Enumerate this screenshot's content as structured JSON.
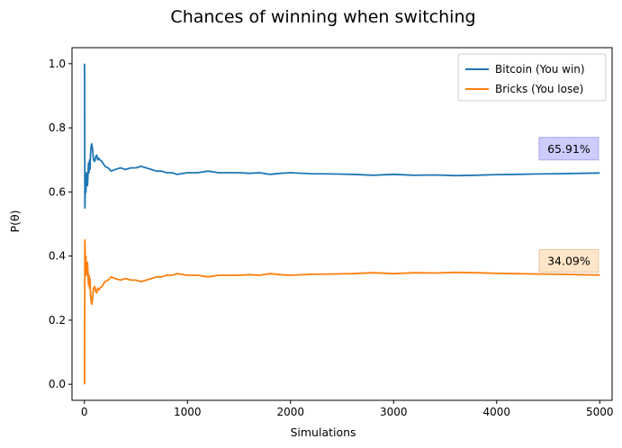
{
  "chart_data": {
    "type": "line",
    "title": "Chances of winning when switching",
    "xlabel": "Simulations",
    "ylabel": "P(θ)",
    "xlim": [
      -120,
      5120
    ],
    "ylim": [
      -0.05,
      1.05
    ],
    "xticks": [
      0,
      1000,
      2000,
      3000,
      4000,
      5000
    ],
    "xtick_labels": [
      "0",
      "1000",
      "2000",
      "3000",
      "4000",
      "5000"
    ],
    "yticks": [
      0.0,
      0.2,
      0.4,
      0.6,
      0.8,
      1.0
    ],
    "ytick_labels": [
      "0.0",
      "0.2",
      "0.4",
      "0.6",
      "0.8",
      "1.0"
    ],
    "grid": false,
    "legend_position": "top-right",
    "series": [
      {
        "name": "Bitcoin (You win)",
        "color": "#1f77b4",
        "x": [
          1,
          5,
          10,
          15,
          20,
          25,
          30,
          35,
          40,
          45,
          50,
          55,
          60,
          65,
          70,
          75,
          80,
          85,
          90,
          100,
          110,
          120,
          130,
          140,
          150,
          170,
          200,
          230,
          260,
          300,
          350,
          400,
          450,
          500,
          550,
          600,
          650,
          700,
          750,
          800,
          850,
          900,
          1000,
          1100,
          1200,
          1300,
          1400,
          1500,
          1600,
          1700,
          1800,
          1900,
          2000,
          2200,
          2400,
          2600,
          2800,
          3000,
          3200,
          3400,
          3600,
          3800,
          4000,
          4200,
          4400,
          4600,
          4800,
          5000
        ],
        "y": [
          1.0,
          0.55,
          0.62,
          0.6,
          0.66,
          0.63,
          0.62,
          0.65,
          0.69,
          0.66,
          0.7,
          0.67,
          0.72,
          0.74,
          0.75,
          0.745,
          0.73,
          0.71,
          0.7,
          0.695,
          0.71,
          0.715,
          0.7,
          0.705,
          0.7,
          0.695,
          0.68,
          0.675,
          0.665,
          0.67,
          0.675,
          0.67,
          0.675,
          0.675,
          0.68,
          0.675,
          0.67,
          0.665,
          0.665,
          0.66,
          0.66,
          0.655,
          0.66,
          0.66,
          0.665,
          0.66,
          0.66,
          0.66,
          0.658,
          0.66,
          0.655,
          0.658,
          0.66,
          0.657,
          0.656,
          0.655,
          0.652,
          0.655,
          0.652,
          0.653,
          0.651,
          0.652,
          0.654,
          0.655,
          0.656,
          0.657,
          0.658,
          0.6591
        ]
      },
      {
        "name": "Bricks (You lose)",
        "color": "#ff7f0e",
        "x": [
          1,
          5,
          10,
          15,
          20,
          25,
          30,
          35,
          40,
          45,
          50,
          55,
          60,
          65,
          70,
          75,
          80,
          85,
          90,
          100,
          110,
          120,
          130,
          140,
          150,
          170,
          200,
          230,
          260,
          300,
          350,
          400,
          450,
          500,
          550,
          600,
          650,
          700,
          750,
          800,
          850,
          900,
          1000,
          1100,
          1200,
          1300,
          1400,
          1500,
          1600,
          1700,
          1800,
          1900,
          2000,
          2200,
          2400,
          2600,
          2800,
          3000,
          3200,
          3400,
          3600,
          3800,
          4000,
          4200,
          4400,
          4600,
          4800,
          5000
        ],
        "y": [
          0.0,
          0.45,
          0.38,
          0.4,
          0.34,
          0.37,
          0.38,
          0.35,
          0.31,
          0.34,
          0.3,
          0.33,
          0.28,
          0.26,
          0.25,
          0.255,
          0.27,
          0.29,
          0.3,
          0.305,
          0.29,
          0.285,
          0.3,
          0.295,
          0.3,
          0.305,
          0.32,
          0.325,
          0.335,
          0.33,
          0.325,
          0.33,
          0.325,
          0.325,
          0.32,
          0.325,
          0.33,
          0.335,
          0.335,
          0.34,
          0.34,
          0.345,
          0.34,
          0.34,
          0.335,
          0.34,
          0.34,
          0.34,
          0.342,
          0.34,
          0.345,
          0.342,
          0.34,
          0.343,
          0.344,
          0.345,
          0.348,
          0.345,
          0.348,
          0.347,
          0.349,
          0.348,
          0.346,
          0.345,
          0.344,
          0.343,
          0.342,
          0.3409
        ]
      }
    ],
    "annotations": [
      {
        "text": "65.91%",
        "x": 4700,
        "y": 0.735,
        "facecolor": "#ccccff",
        "edgecolor": "#a9a9e6"
      },
      {
        "text": "34.09%",
        "x": 4700,
        "y": 0.385,
        "facecolor": "#ffe6c8",
        "edgecolor": "#e6c9a8"
      }
    ]
  }
}
